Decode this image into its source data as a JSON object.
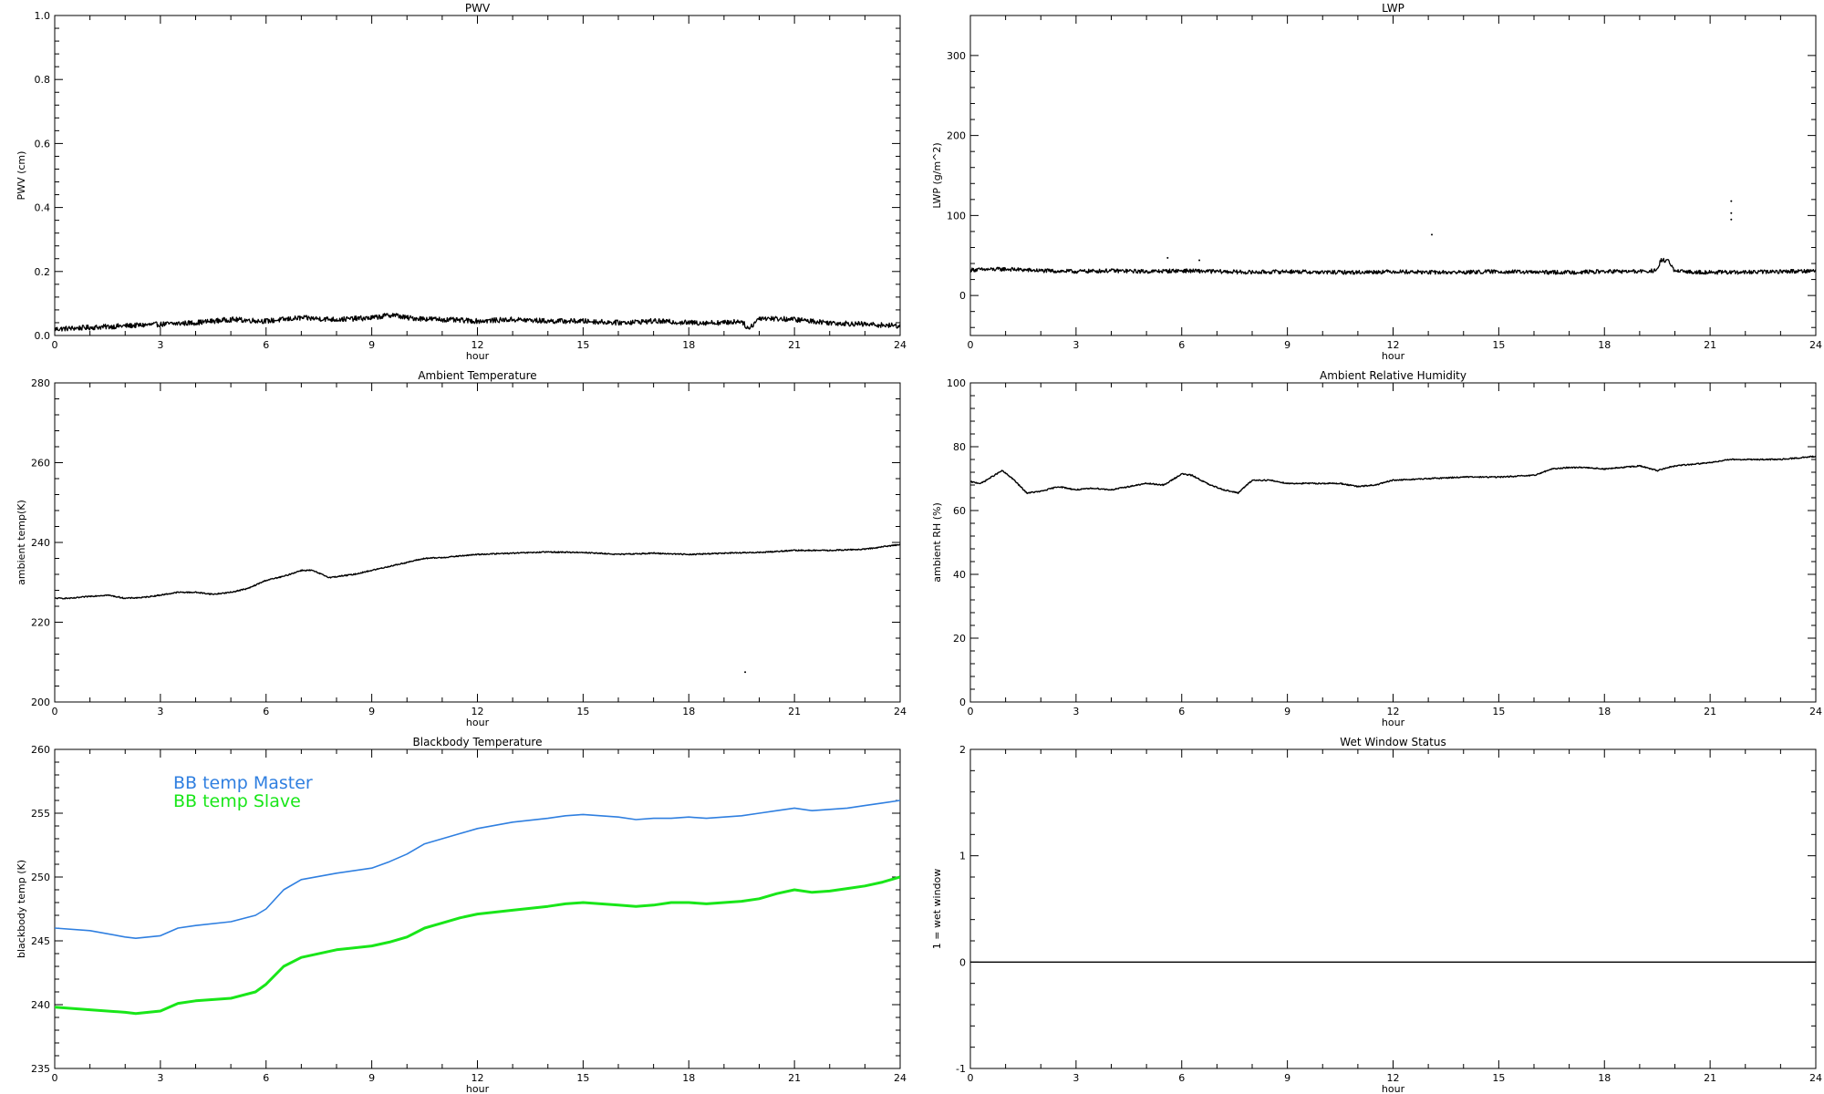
{
  "chart_data": [
    {
      "type": "line",
      "title": "PWV",
      "xlabel": "hour",
      "ylabel": "PWV (cm)",
      "xlim": [
        0,
        24
      ],
      "ylim": [
        0,
        1.0
      ],
      "xticks": [
        "0",
        "3",
        "6",
        "9",
        "12",
        "15",
        "18",
        "21",
        "24"
      ],
      "yticks": [
        "0.0",
        "0.2",
        "0.4",
        "0.6",
        "0.8",
        "1.0"
      ],
      "noise": 0.008,
      "series": [
        {
          "color": "#000000",
          "x": [
            0,
            1,
            2,
            3,
            4,
            5,
            6,
            7,
            8,
            9,
            9.6,
            10,
            11,
            12,
            13,
            14,
            15,
            16,
            17,
            18,
            19,
            19.5,
            19.7,
            20,
            21,
            22,
            23,
            24
          ],
          "y": [
            0.02,
            0.025,
            0.03,
            0.035,
            0.04,
            0.05,
            0.045,
            0.055,
            0.05,
            0.055,
            0.065,
            0.055,
            0.05,
            0.045,
            0.05,
            0.045,
            0.045,
            0.04,
            0.045,
            0.04,
            0.04,
            0.045,
            0.02,
            0.055,
            0.05,
            0.04,
            0.035,
            0.03
          ]
        }
      ]
    },
    {
      "type": "line",
      "title": "LWP",
      "xlabel": "hour",
      "ylabel": "LWP (g/m^2)",
      "xlim": [
        0,
        24
      ],
      "ylim": [
        -50,
        350
      ],
      "xticks": [
        "0",
        "3",
        "6",
        "9",
        "12",
        "15",
        "18",
        "21",
        "24"
      ],
      "yticks": [
        "0",
        "100",
        "200",
        "300"
      ],
      "noise": 2.5,
      "series": [
        {
          "color": "#000000",
          "x": [
            0,
            1,
            2,
            3,
            4,
            5,
            6,
            7,
            8,
            9,
            10,
            11,
            12,
            13,
            14,
            15,
            16,
            17,
            18,
            19,
            19.5,
            19.6,
            19.8,
            20,
            21,
            22,
            23,
            24
          ],
          "y": [
            32,
            33,
            31,
            30,
            31,
            30,
            31,
            30,
            29,
            30,
            29,
            29,
            30,
            29,
            29,
            30,
            29,
            29,
            30,
            30,
            31,
            44,
            44,
            30,
            29,
            29,
            30,
            31
          ],
          "points": [
            [
              5.6,
              47
            ],
            [
              6.5,
              44
            ],
            [
              13.1,
              76
            ],
            [
              21.6,
              118
            ],
            [
              21.6,
              103
            ],
            [
              21.6,
              95
            ]
          ]
        }
      ]
    },
    {
      "type": "line",
      "title": "Ambient Temperature",
      "xlabel": "hour",
      "ylabel": "ambient temp(K)",
      "xlim": [
        0,
        24
      ],
      "ylim": [
        200,
        280
      ],
      "xticks": [
        "0",
        "3",
        "6",
        "9",
        "12",
        "15",
        "18",
        "21",
        "24"
      ],
      "yticks": [
        "200",
        "220",
        "240",
        "260",
        "280"
      ],
      "noise": 0.15,
      "series": [
        {
          "color": "#000000",
          "x": [
            0,
            0.5,
            1,
            1.5,
            2,
            2.5,
            3,
            3.5,
            4,
            4.5,
            5,
            5.5,
            6,
            6.5,
            7,
            7.3,
            7.8,
            8.5,
            9,
            9.5,
            10,
            10.5,
            11,
            12,
            13,
            14,
            15,
            16,
            17,
            18,
            19,
            20,
            21,
            22,
            23,
            24
          ],
          "y": [
            226,
            226,
            226.5,
            226.8,
            226,
            226.2,
            226.8,
            227.5,
            227.5,
            227,
            227.5,
            228.5,
            230.5,
            231.5,
            233,
            233,
            231.2,
            232,
            233,
            234,
            235,
            236,
            236.2,
            237,
            237.3,
            237.6,
            237.5,
            237,
            237.3,
            237,
            237.3,
            237.5,
            238,
            238,
            238.3,
            239.5
          ]
        }
      ]
    },
    {
      "type": "line",
      "title": "Ambient Relative Humidity",
      "xlabel": "hour",
      "ylabel": "ambient RH (%)",
      "xlim": [
        0,
        24
      ],
      "ylim": [
        0,
        100
      ],
      "xticks": [
        "0",
        "3",
        "6",
        "9",
        "12",
        "15",
        "18",
        "21",
        "24"
      ],
      "yticks": [
        "0",
        "20",
        "40",
        "60",
        "80",
        "100"
      ],
      "noise": 0.2,
      "series": [
        {
          "color": "#000000",
          "x": [
            0,
            0.3,
            0.6,
            0.9,
            1.2,
            1.6,
            2,
            2.5,
            3,
            3.5,
            4,
            4.5,
            5,
            5.5,
            6,
            6.3,
            6.8,
            7.2,
            7.6,
            8,
            8.5,
            9,
            9.5,
            10,
            10.5,
            11,
            11.5,
            12,
            13,
            14,
            15,
            16,
            16.5,
            17,
            17.5,
            18,
            18.5,
            19,
            19.5,
            20,
            21,
            21.5,
            22,
            22.5,
            23,
            23.5,
            24
          ],
          "y": [
            69,
            68.5,
            70.5,
            72.5,
            70,
            65.5,
            66,
            67.5,
            66.5,
            67,
            66.5,
            67.5,
            68.5,
            68,
            71.5,
            71,
            68,
            66.5,
            65.5,
            69.5,
            69.5,
            68.5,
            68.5,
            68.5,
            68.5,
            67.5,
            68,
            69.5,
            70,
            70.5,
            70.5,
            71,
            73,
            73.5,
            73.5,
            73,
            73.5,
            74,
            72.5,
            74,
            75,
            76,
            76,
            76,
            76,
            76.5,
            77
          ]
        }
      ]
    },
    {
      "type": "line",
      "title": "Blackbody Temperature",
      "xlabel": "hour",
      "ylabel": "blackbody temp (K)",
      "xlim": [
        0,
        24
      ],
      "ylim": [
        235,
        260
      ],
      "xticks": [
        "0",
        "3",
        "6",
        "9",
        "12",
        "15",
        "18",
        "21",
        "24"
      ],
      "yticks": [
        "235",
        "240",
        "245",
        "250",
        "255",
        "260"
      ],
      "noise": 0,
      "series": [
        {
          "name": "BB temp Master",
          "color": "#2f7fe0",
          "x": [
            0,
            1,
            2,
            2.3,
            3,
            3.5,
            4,
            5,
            5.7,
            6,
            6.5,
            7,
            8,
            9,
            9.5,
            10,
            10.5,
            11,
            11.5,
            12,
            13,
            14,
            14.5,
            15,
            15.5,
            16,
            16.5,
            17,
            17.5,
            18,
            18.5,
            19,
            19.5,
            20,
            20.5,
            21,
            21.5,
            22,
            22.5,
            23,
            23.5,
            24
          ],
          "y": [
            246,
            245.8,
            245.3,
            245.2,
            245.4,
            246,
            246.2,
            246.5,
            247,
            247.5,
            249,
            249.8,
            250.3,
            250.7,
            251.2,
            251.8,
            252.6,
            253,
            253.4,
            253.8,
            254.3,
            254.6,
            254.8,
            254.9,
            254.8,
            254.7,
            254.5,
            254.6,
            254.6,
            254.7,
            254.6,
            254.7,
            254.8,
            255,
            255.2,
            255.4,
            255.2,
            255.3,
            255.4,
            255.6,
            255.8,
            256
          ]
        },
        {
          "name": "BB temp Slave",
          "color": "#19e619",
          "x": [
            0,
            1,
            2,
            2.3,
            3,
            3.5,
            4,
            5,
            5.7,
            6,
            6.5,
            7,
            8,
            9,
            9.5,
            10,
            10.5,
            11,
            11.5,
            12,
            13,
            14,
            14.5,
            15,
            15.5,
            16,
            16.5,
            17,
            17.5,
            18,
            18.5,
            19,
            19.5,
            20,
            20.5,
            21,
            21.5,
            22,
            22.5,
            23,
            23.5,
            24
          ],
          "y": [
            239.8,
            239.6,
            239.4,
            239.3,
            239.5,
            240.1,
            240.3,
            240.5,
            241,
            241.6,
            243,
            243.7,
            244.3,
            244.6,
            244.9,
            245.3,
            246,
            246.4,
            246.8,
            247.1,
            247.4,
            247.7,
            247.9,
            248,
            247.9,
            247.8,
            247.7,
            247.8,
            248,
            248,
            247.9,
            248,
            248.1,
            248.3,
            248.7,
            249,
            248.8,
            248.9,
            249.1,
            249.3,
            249.6,
            250
          ]
        }
      ]
    },
    {
      "type": "line",
      "title": "Wet Window Status",
      "xlabel": "hour",
      "ylabel": "1 = wet window",
      "xlim": [
        0,
        24
      ],
      "ylim": [
        -1,
        2
      ],
      "xticks": [
        "0",
        "3",
        "6",
        "9",
        "12",
        "15",
        "18",
        "21",
        "24"
      ],
      "yticks": [
        "-1",
        "0",
        "1",
        "2"
      ],
      "noise": 0,
      "series": [
        {
          "color": "#000000",
          "x": [
            0,
            24
          ],
          "y": [
            0,
            0
          ]
        }
      ]
    }
  ]
}
